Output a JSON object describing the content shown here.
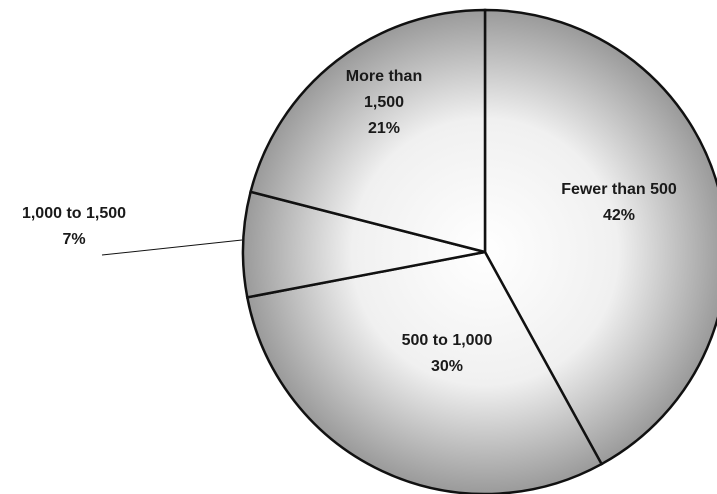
{
  "chart_data": {
    "type": "pie",
    "title": "",
    "slices": [
      {
        "label_lines": [
          "Fewer than 500"
        ],
        "value": 42,
        "value_label": "42%"
      },
      {
        "label_lines": [
          "500 to 1,000"
        ],
        "value": 30,
        "value_label": "30%"
      },
      {
        "label_lines": [
          "1,000 to 1,500"
        ],
        "value": 7,
        "value_label": "7%"
      },
      {
        "label_lines": [
          "More than",
          "1,500"
        ],
        "value": 21,
        "value_label": "21%"
      }
    ],
    "start_position": "12 o'clock",
    "direction": "clockwise",
    "slice_fill": "radial gradient, white center to gray",
    "colors": {
      "gradient_inner": "#ffffff",
      "gradient_outer": "#9a9a9a",
      "outline": "#111111",
      "text": "#1a1a1a"
    },
    "legend": "none"
  }
}
